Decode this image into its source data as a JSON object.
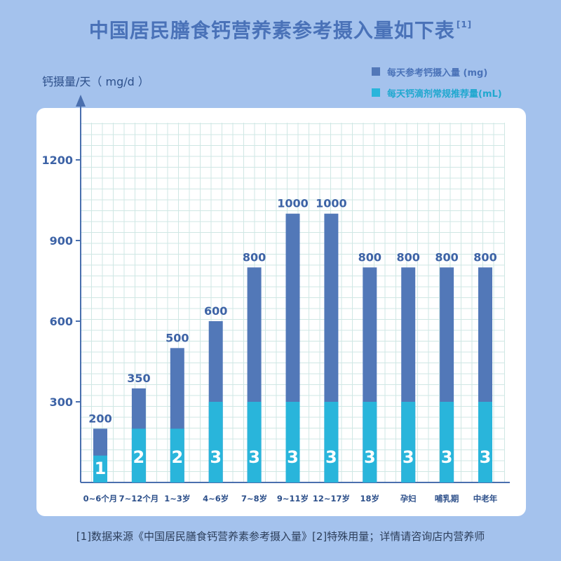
{
  "title": "中国居民膳食钙营养素参考摄入量如下表",
  "title_sup": "[1]",
  "y_unit": "钙摄量/天（ mg/d ）",
  "footnote": "[1]数据来源《中国居民膳食钙营养素参考摄入量》[2]特殊用量；详情请咨询店内营养师",
  "colors": {
    "background": "#a4c2ed",
    "reference_bar": "#5278b8",
    "drops_bar": "#29b5db",
    "axis": "#4a6fae",
    "grid": "#cfe7e4"
  },
  "chart_data": {
    "type": "bar",
    "title": "中国居民膳食钙营养素参考摄入量如下表",
    "ylabel": "钙摄量/天（ mg/d ）",
    "ylim": [
      0,
      1300
    ],
    "yticks": [
      300,
      600,
      900,
      1200
    ],
    "grid": true,
    "legend_position": "top-right",
    "categories": [
      "0~6个月",
      "7~12个月",
      "1~3岁",
      "4~6岁",
      "7~8岁",
      "9~11岁",
      "12~17岁",
      "18岁",
      "孕妇",
      "哺乳期",
      "中老年"
    ],
    "series": [
      {
        "name": "每天参考钙摄入量 (mg)",
        "color": "#5278b8",
        "values": [
          200,
          350,
          500,
          600,
          800,
          1000,
          1000,
          800,
          800,
          800,
          800
        ]
      },
      {
        "name": "每天钙滴剂常规推荐量(mL)",
        "color": "#29b5db",
        "values": [
          1,
          2,
          2,
          3,
          3,
          3,
          3,
          3,
          3,
          3,
          3
        ],
        "bar_height_in_axis_units": [
          100,
          200,
          200,
          300,
          300,
          300,
          300,
          300,
          300,
          300,
          300
        ]
      }
    ]
  }
}
